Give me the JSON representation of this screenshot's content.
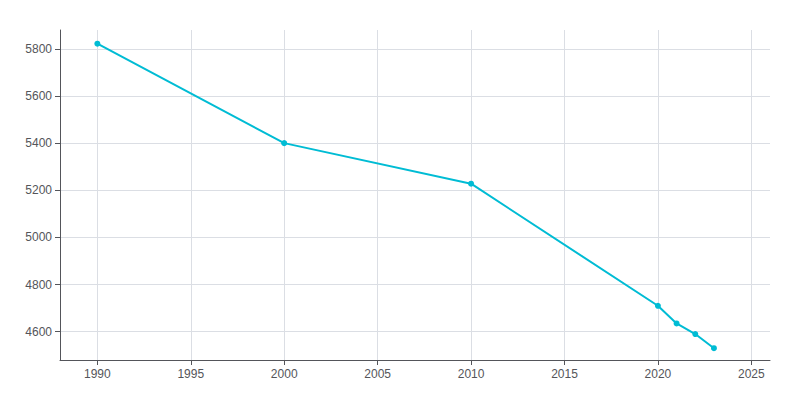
{
  "chart_data": {
    "type": "line",
    "x": [
      1990,
      2000,
      2010,
      2020,
      2021,
      2022,
      2023
    ],
    "values": [
      5822,
      5400,
      5228,
      4710,
      4635,
      4590,
      4530
    ],
    "color": "#00BCD4",
    "marker": "circle",
    "xlim": [
      1988.0,
      2026.0
    ],
    "xticks": [
      1990,
      1995,
      2000,
      2005,
      2010,
      2015,
      2020,
      2025
    ],
    "ylim": [
      4480,
      5880
    ],
    "yticks": [
      4600,
      4800,
      5000,
      5200,
      5400,
      5600,
      5800
    ],
    "grid": true
  }
}
